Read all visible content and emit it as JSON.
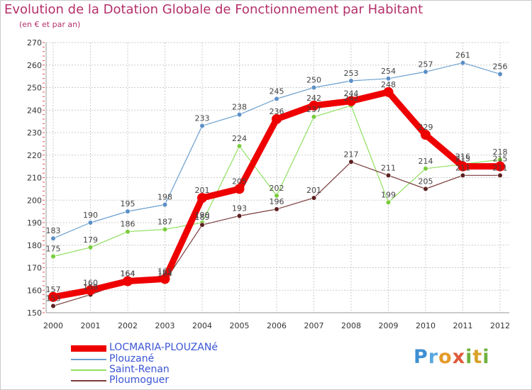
{
  "chart_data": {
    "type": "line",
    "title": "Evolution de la Dotation Globale de Fonctionnement par Habitant",
    "subtitle": "(en € et par an)",
    "xlabel": "",
    "ylabel": "",
    "ylim": [
      150,
      270
    ],
    "y_ticks": [
      "150",
      "160",
      "170",
      "180",
      "190",
      "200",
      "210",
      "220",
      "230",
      "240",
      "250",
      "260",
      "270"
    ],
    "categories": [
      "2000",
      "2001",
      "2002",
      "2003",
      "2004",
      "2005",
      "2006",
      "2007",
      "2008",
      "2009",
      "2010",
      "2011",
      "2012"
    ],
    "grid": true,
    "legend_position": "bottom-left",
    "series": [
      {
        "name": "LOCMARIA-PLOUZANé",
        "color": "#ee0000",
        "marker_color": "#ee0000",
        "emphasis": "heavy",
        "values": [
          157,
          160,
          164,
          165,
          201,
          205,
          236,
          242,
          244,
          248,
          229,
          215,
          215
        ],
        "labels": [
          "157",
          "160",
          "164",
          "165",
          "201",
          "205",
          "236",
          "242",
          "244",
          "248",
          "229",
          "215",
          "215"
        ]
      },
      {
        "name": "Plouzané",
        "color": "#6a9fcf",
        "marker_color": "#5b8fc6",
        "emphasis": "normal",
        "values": [
          183,
          190,
          195,
          198,
          233,
          238,
          245,
          250,
          253,
          254,
          257,
          261,
          256
        ],
        "labels": [
          "183",
          "190",
          "195",
          "198",
          "233",
          "238",
          "245",
          "250",
          "253",
          "254",
          "257",
          "261",
          "256"
        ]
      },
      {
        "name": "Saint-Renan",
        "color": "#90e060",
        "marker_color": "#7acc3c",
        "emphasis": "normal",
        "values": [
          175,
          179,
          186,
          187,
          190,
          224,
          202,
          237,
          242,
          199,
          214,
          216,
          218
        ],
        "labels": [
          "175",
          "179",
          "186",
          "187",
          "190",
          "224",
          "202",
          "237",
          "242",
          "199",
          "214",
          "216",
          "218"
        ]
      },
      {
        "name": "Ploumoguer",
        "color": "#7a3a3a",
        "marker_color": "#5c1f1f",
        "emphasis": "normal",
        "values": [
          153,
          158,
          164,
          164,
          189,
          193,
          196,
          201,
          217,
          211,
          205,
          211,
          211
        ],
        "labels": [
          "153",
          "158",
          "164",
          "164",
          "189",
          "193",
          "196",
          "201",
          "217",
          "211",
          "205",
          "211",
          "211"
        ]
      }
    ]
  },
  "brand": {
    "logo_letters": [
      "P",
      "r",
      "o",
      "x",
      "i",
      "t",
      "i"
    ]
  }
}
